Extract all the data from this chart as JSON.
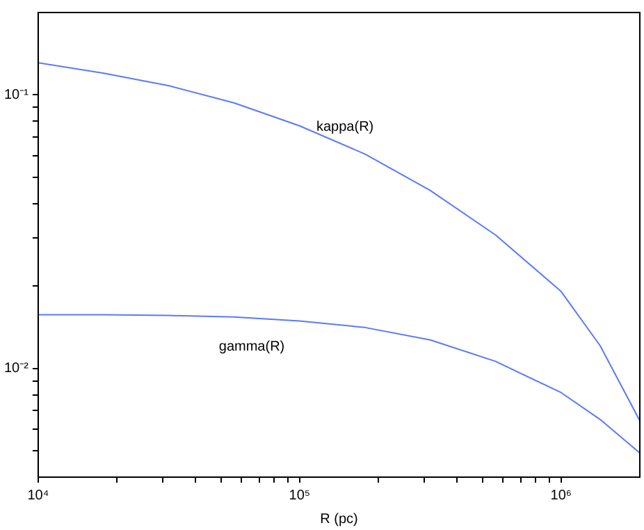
{
  "chart_data": {
    "type": "line",
    "xlabel": "R (pc)",
    "log": "xy",
    "grid": false,
    "legend": false,
    "marker": "none",
    "line_style": "solid",
    "x": [
      10000,
      17800,
      31600,
      56200,
      100000,
      178000,
      316000,
      562000,
      1000000,
      1410000,
      2000000
    ],
    "series": [
      {
        "color": "#5a78ff",
        "values": [
          0.131,
          0.12,
          0.108,
          0.0934,
          0.077,
          0.0607,
          0.0447,
          0.0307,
          0.0191,
          0.0121,
          0.00643
        ]
      },
      {
        "color": "#5a78ff",
        "values": [
          0.0157,
          0.0157,
          0.0156,
          0.0154,
          0.0149,
          0.0141,
          0.0127,
          0.0106,
          0.00815,
          0.0065,
          0.0049
        ]
      }
    ],
    "annotations": [
      "kappa(R)",
      "gamma(R)"
    ],
    "xlim": [
      10000,
      2000000
    ],
    "ylim": [
      0.004,
      0.2
    ],
    "xticks": [
      {
        "value": 10000,
        "label": "10⁴"
      },
      {
        "value": 20000,
        "label": null
      },
      {
        "value": 30000,
        "label": null
      },
      {
        "value": 40000,
        "label": null
      },
      {
        "value": 50000,
        "label": null
      },
      {
        "value": 60000,
        "label": null
      },
      {
        "value": 70000,
        "label": null
      },
      {
        "value": 80000,
        "label": null
      },
      {
        "value": 90000,
        "label": null
      },
      {
        "value": 100000,
        "label": "10⁵"
      },
      {
        "value": 200000,
        "label": null
      },
      {
        "value": 300000,
        "label": null
      },
      {
        "value": 400000,
        "label": null
      },
      {
        "value": 500000,
        "label": null
      },
      {
        "value": 600000,
        "label": null
      },
      {
        "value": 700000,
        "label": null
      },
      {
        "value": 800000,
        "label": null
      },
      {
        "value": 900000,
        "label": null
      },
      {
        "value": 1000000,
        "label": "10⁶"
      }
    ],
    "yticks": [
      {
        "value": 0.005,
        "label": null
      },
      {
        "value": 0.006,
        "label": null
      },
      {
        "value": 0.007,
        "label": null
      },
      {
        "value": 0.008,
        "label": null
      },
      {
        "value": 0.009,
        "label": null
      },
      {
        "value": 0.01,
        "label": "10⁻²"
      },
      {
        "value": 0.02,
        "label": null
      },
      {
        "value": 0.03,
        "label": null
      },
      {
        "value": 0.04,
        "label": null
      },
      {
        "value": 0.05,
        "label": null
      },
      {
        "value": 0.06,
        "label": null
      },
      {
        "value": 0.07,
        "label": null
      },
      {
        "value": 0.08,
        "label": null
      },
      {
        "value": 0.09,
        "label": null
      },
      {
        "value": 0.1,
        "label": "10⁻¹"
      }
    ]
  }
}
